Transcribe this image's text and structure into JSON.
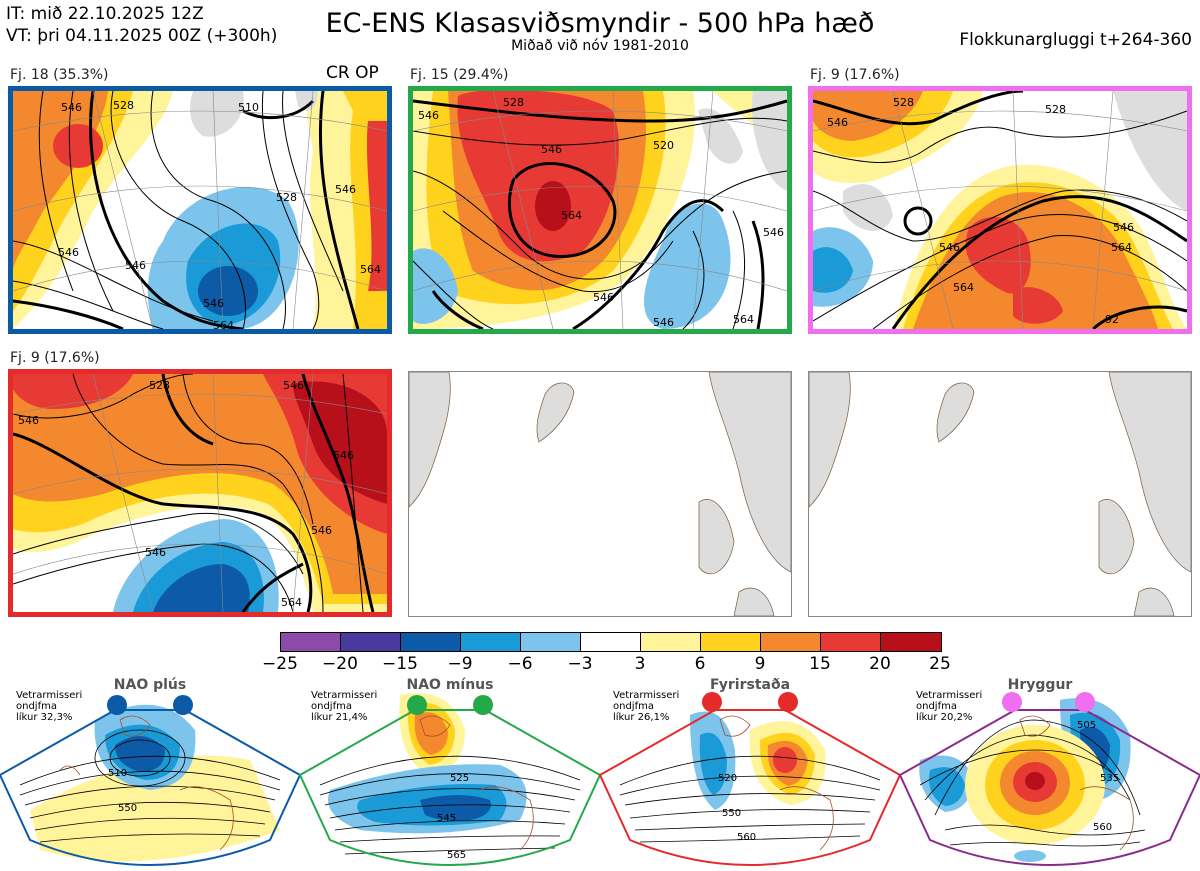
{
  "header": {
    "it": "IT: mið 22.10.2025 12Z",
    "vt": "VT: þri 04.11.2025 00Z  (+300h)",
    "title": "EC-ENS Klasasviðsmyndir - 500 hPa hæð",
    "subtitle": "Miðað við nóv 1981-2010",
    "window": "Flokkunargluggi t+264-360"
  },
  "panels": [
    {
      "label": "Fj. 18 (35.3%)",
      "extra": "CR OP",
      "border": "#0a5aa6"
    },
    {
      "label": "Fj. 15 (29.4%)",
      "border": "#23a84a"
    },
    {
      "label": "Fj. 9 (17.6%)",
      "border": "#f06ef0"
    },
    {
      "label": "Fj. 9 (17.6%)",
      "border": "#e42a2a"
    }
  ],
  "contour_labels": {
    "p1": [
      "546",
      "528",
      "510",
      "546",
      "564",
      "528",
      "546",
      "546",
      "564",
      "546"
    ],
    "p2": [
      "546",
      "528",
      "546",
      "520",
      "564",
      "546",
      "546",
      "546",
      "564"
    ],
    "p3": [
      "546",
      "528",
      "528",
      "546",
      "564",
      "546",
      "564",
      "92"
    ],
    "p4": [
      "546",
      "528",
      "546",
      "546",
      "546",
      "564",
      "546"
    ]
  },
  "colorbar": {
    "colors": [
      "#8e4aa8",
      "#4a3aa0",
      "#0d5aa8",
      "#1a9bd8",
      "#7cc4ec",
      "#ffffff",
      "#fff49a",
      "#ffd21e",
      "#f4882e",
      "#e83a34",
      "#b8101a"
    ],
    "ticks": [
      "−25",
      "−20",
      "−15",
      "−9",
      "−6",
      "−3",
      "3",
      "6",
      "9",
      "15",
      "20",
      "25"
    ]
  },
  "regimes": [
    {
      "name": "NAO plús",
      "stat1": "Vetrarmisseri",
      "stat2": "ondjfma",
      "stat3": "líkur 32,3%",
      "dot": "#0a5aa6",
      "border": "#0a5aa6",
      "labels": [
        "510",
        "550"
      ]
    },
    {
      "name": "NAO mínus",
      "stat1": "Vetrarmisseri",
      "stat2": "ondjfma",
      "stat3": "líkur 21,4%",
      "dot": "#23a84a",
      "border": "#23a84a",
      "labels": [
        "525",
        "545",
        "565"
      ]
    },
    {
      "name": "Fyrirstaða",
      "stat1": "Vetrarmisseri",
      "stat2": "ondjfma",
      "stat3": "líkur 26,1%",
      "dot": "#e42a2a",
      "border": "#e42a2a",
      "labels": [
        "520",
        "550",
        "560"
      ]
    },
    {
      "name": "Hryggur",
      "stat1": "Vetrarmisseri",
      "stat2": "ondjfma",
      "stat3": "líkur 20,2%",
      "dot": "#f06ef0",
      "border": "#8a2a8a",
      "labels": [
        "505",
        "535",
        "560"
      ]
    }
  ]
}
